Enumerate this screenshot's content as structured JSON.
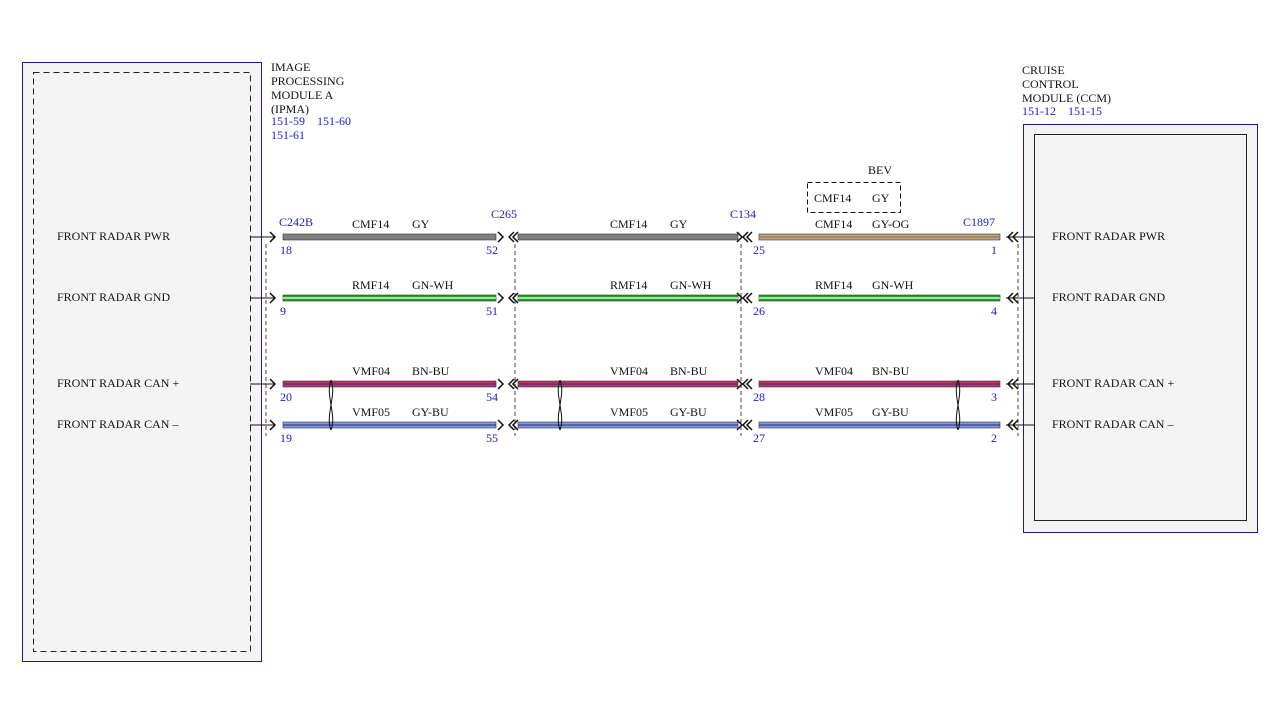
{
  "modules": [
    {
      "name_lines": [
        "IMAGE",
        "PROCESSING",
        "MODULE A",
        "(IPMA)"
      ],
      "refs": [
        "151-59",
        "151-60",
        "151-61"
      ],
      "signals": [
        "FRONT RADAR PWR",
        "FRONT RADAR GND",
        "FRONT RADAR CAN +",
        "FRONT RADAR CAN –"
      ]
    },
    {
      "name_lines": [
        "CRUISE",
        "CONTROL",
        "MODULE (CCM)"
      ],
      "refs": [
        "151-12",
        "151-15"
      ],
      "signals": [
        "FRONT RADAR PWR",
        "FRONT RADAR GND",
        "FRONT RADAR CAN +",
        "FRONT RADAR CAN –"
      ]
    }
  ],
  "connectors": [
    {
      "name": "C242B",
      "pins": [
        18,
        9,
        20,
        19
      ]
    },
    {
      "name": "C265",
      "pins": [
        52,
        51,
        54,
        55
      ]
    },
    {
      "name": "C134",
      "pins": [
        25,
        26,
        28,
        27
      ]
    },
    {
      "name": "C1897",
      "pins": [
        1,
        4,
        3,
        2
      ]
    }
  ],
  "segments": [
    {
      "wires": [
        {
          "circuit": "CMF14",
          "color": "GY"
        },
        {
          "circuit": "RMF14",
          "color": "GN-WH"
        },
        {
          "circuit": "VMF04",
          "color": "BN-BU"
        },
        {
          "circuit": "VMF05",
          "color": "GY-BU"
        }
      ]
    },
    {
      "wires": [
        {
          "circuit": "CMF14",
          "color": "GY"
        },
        {
          "circuit": "RMF14",
          "color": "GN-WH"
        },
        {
          "circuit": "VMF04",
          "color": "BN-BU"
        },
        {
          "circuit": "VMF05",
          "color": "GY-BU"
        }
      ]
    },
    {
      "wires": [
        {
          "circuit": "CMF14",
          "color": "GY-OG"
        },
        {
          "circuit": "RMF14",
          "color": "GN-WH"
        },
        {
          "circuit": "VMF04",
          "color": "BN-BU"
        },
        {
          "circuit": "VMF05",
          "color": "GY-BU"
        }
      ]
    }
  ],
  "variant": {
    "label": "BEV",
    "circuit": "CMF14",
    "color": "GY"
  }
}
